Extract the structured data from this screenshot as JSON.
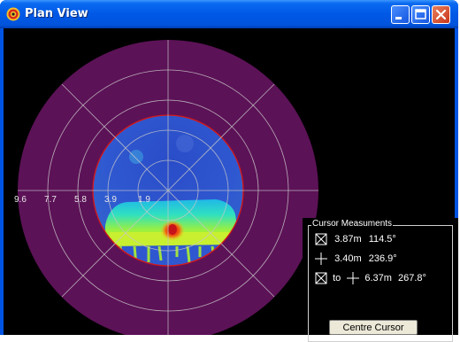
{
  "window": {
    "title": "Plan View",
    "app_icon": "sonar-target-icon",
    "controls": [
      "minimize-icon",
      "maximize-icon",
      "close-icon"
    ],
    "title_color": "#0054e3"
  },
  "plan_view": {
    "range_labels": [
      "9.6",
      "7.7",
      "5.8",
      "3.9",
      "1.9"
    ],
    "colors": {
      "outer_ring": "#5c1257",
      "inner_disc": "#3050c0",
      "boundary": "#d81818",
      "grid": "#c8c8c8"
    }
  },
  "cursor_measurements": {
    "title": "Cursor Measuments",
    "cursor1": {
      "icon": "box-cursor-icon",
      "range": "3.87m",
      "bearing": "114.5°"
    },
    "cursor2": {
      "icon": "cross-cursor-icon",
      "range": "3.40m",
      "bearing": "236.9°"
    },
    "between": {
      "icon_from": "box-cursor-icon",
      "to_label": "to",
      "icon_to": "cross-cursor-icon",
      "range": "6.37m",
      "bearing": "267.8°"
    },
    "centre_button": "Centre Cursor"
  }
}
